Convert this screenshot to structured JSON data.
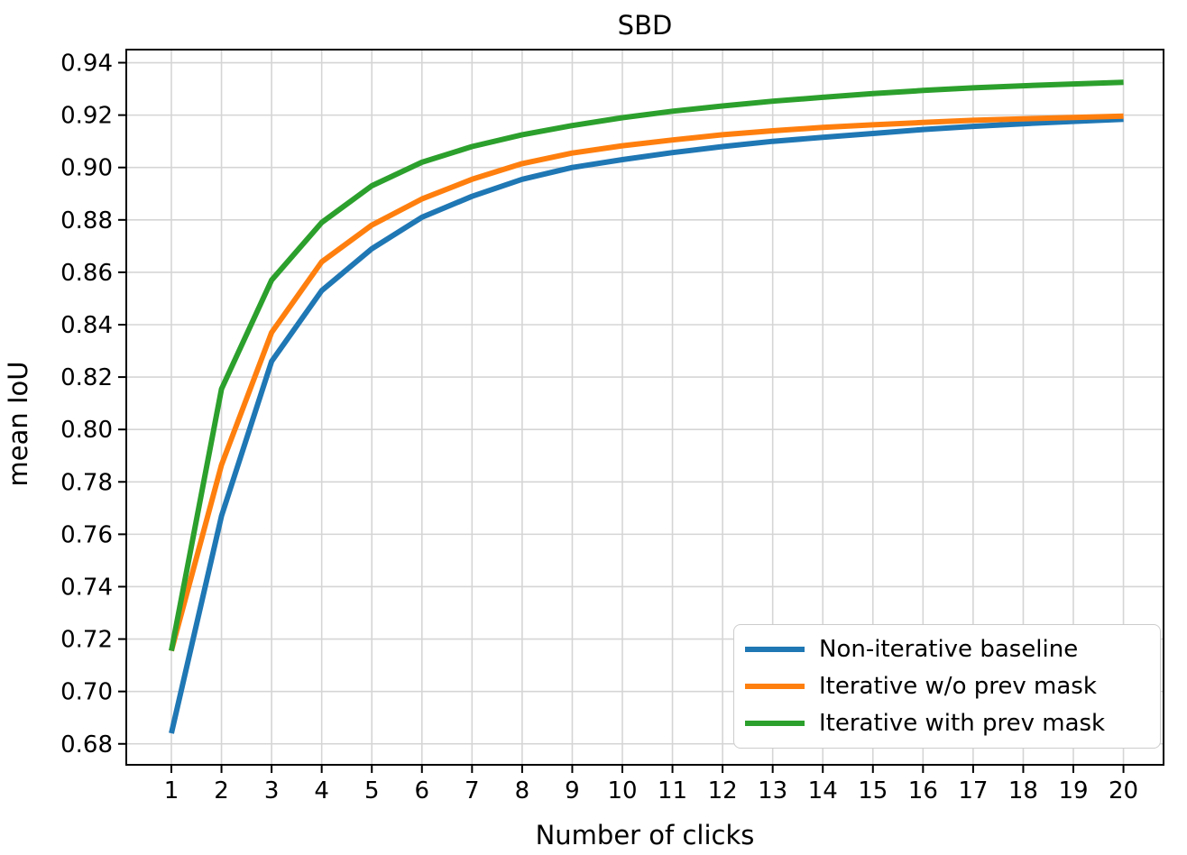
{
  "chart_data": {
    "type": "line",
    "title": "SBD",
    "xlabel": "Number of clicks",
    "ylabel": "mean IoU",
    "x": [
      1,
      2,
      3,
      4,
      5,
      6,
      7,
      8,
      9,
      10,
      11,
      12,
      13,
      14,
      15,
      16,
      17,
      18,
      19,
      20
    ],
    "x_tick_labels": [
      "1",
      "2",
      "3",
      "4",
      "5",
      "6",
      "7",
      "8",
      "9",
      "10",
      "11",
      "12",
      "13",
      "14",
      "15",
      "16",
      "17",
      "18",
      "19",
      "20"
    ],
    "y_ticks": [
      0.68,
      0.7,
      0.72,
      0.74,
      0.76,
      0.78,
      0.8,
      0.82,
      0.84,
      0.86,
      0.88,
      0.9,
      0.92,
      0.94
    ],
    "xlim": [
      0.1,
      20.8
    ],
    "ylim": [
      0.672,
      0.945
    ],
    "grid": true,
    "legend_position": "lower right",
    "series": [
      {
        "name": "Non-iterative baseline",
        "color": "#1f77b4",
        "values": [
          0.684,
          0.767,
          0.826,
          0.853,
          0.869,
          0.881,
          0.889,
          0.8955,
          0.9,
          0.903,
          0.9057,
          0.908,
          0.91,
          0.9115,
          0.913,
          0.9145,
          0.9157,
          0.9167,
          0.9176,
          0.9184
        ]
      },
      {
        "name": "Iterative w/o prev mask",
        "color": "#ff7f0e",
        "values": [
          0.7155,
          0.7865,
          0.837,
          0.864,
          0.878,
          0.888,
          0.8955,
          0.9015,
          0.9055,
          0.9083,
          0.9105,
          0.9125,
          0.914,
          0.9153,
          0.9163,
          0.9172,
          0.918,
          0.9186,
          0.9191,
          0.9196
        ]
      },
      {
        "name": "Iterative with prev mask",
        "color": "#2ca02c",
        "values": [
          0.7155,
          0.8155,
          0.857,
          0.879,
          0.893,
          0.902,
          0.908,
          0.9125,
          0.916,
          0.919,
          0.9215,
          0.9235,
          0.9253,
          0.9268,
          0.9282,
          0.9294,
          0.9304,
          0.9312,
          0.9319,
          0.9325
        ]
      }
    ],
    "style": {
      "grid_color": "#d5d5d5",
      "spine_color": "#000000",
      "text_color": "#000000",
      "line_width": 6,
      "tick_font_size": 26,
      "label_font_size": 29,
      "title_font_size": 29
    }
  }
}
